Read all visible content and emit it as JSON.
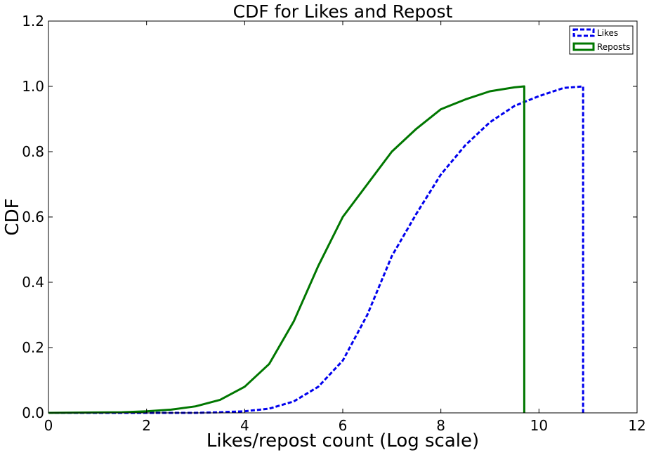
{
  "chart_data": {
    "type": "line",
    "title": "CDF for Likes and Repost",
    "xlabel": "Likes/repost count (Log scale)",
    "ylabel": "CDF",
    "xlim": [
      0,
      12
    ],
    "ylim": [
      0.0,
      1.2
    ],
    "x_ticks": [
      0,
      2,
      4,
      6,
      8,
      10,
      12
    ],
    "x_tick_labels": [
      "0",
      "2",
      "4",
      "6",
      "8",
      "10",
      "12"
    ],
    "y_ticks": [
      0.0,
      0.2,
      0.4,
      0.6,
      0.8,
      1.0,
      1.2
    ],
    "y_tick_labels": [
      "0.0",
      "0.2",
      "0.4",
      "0.6",
      "0.8",
      "1.0",
      "1.2"
    ],
    "grid": false,
    "legend_position": "top-right",
    "series": [
      {
        "name": "Likes",
        "color": "#0000ee",
        "style": "dashed",
        "x": [
          0,
          2,
          3,
          3.5,
          4,
          4.5,
          5,
          5.5,
          6,
          6.5,
          7,
          7.5,
          8,
          8.5,
          9,
          9.5,
          10,
          10.5,
          10.9,
          10.9
        ],
        "y": [
          0.0,
          0.0,
          0.0,
          0.002,
          0.005,
          0.013,
          0.035,
          0.08,
          0.16,
          0.3,
          0.48,
          0.61,
          0.73,
          0.82,
          0.89,
          0.94,
          0.97,
          0.995,
          1.0,
          0.0
        ]
      },
      {
        "name": "Reposts",
        "color": "#007700",
        "style": "solid",
        "x": [
          0,
          1.5,
          2,
          2.5,
          3,
          3.5,
          4,
          4.5,
          5,
          5.5,
          6,
          6.5,
          7,
          7.5,
          8,
          8.5,
          9,
          9.5,
          9.7,
          9.7
        ],
        "y": [
          0.0,
          0.002,
          0.005,
          0.01,
          0.02,
          0.04,
          0.08,
          0.15,
          0.28,
          0.45,
          0.6,
          0.7,
          0.8,
          0.87,
          0.93,
          0.96,
          0.985,
          0.997,
          1.0,
          0.0
        ]
      }
    ]
  }
}
